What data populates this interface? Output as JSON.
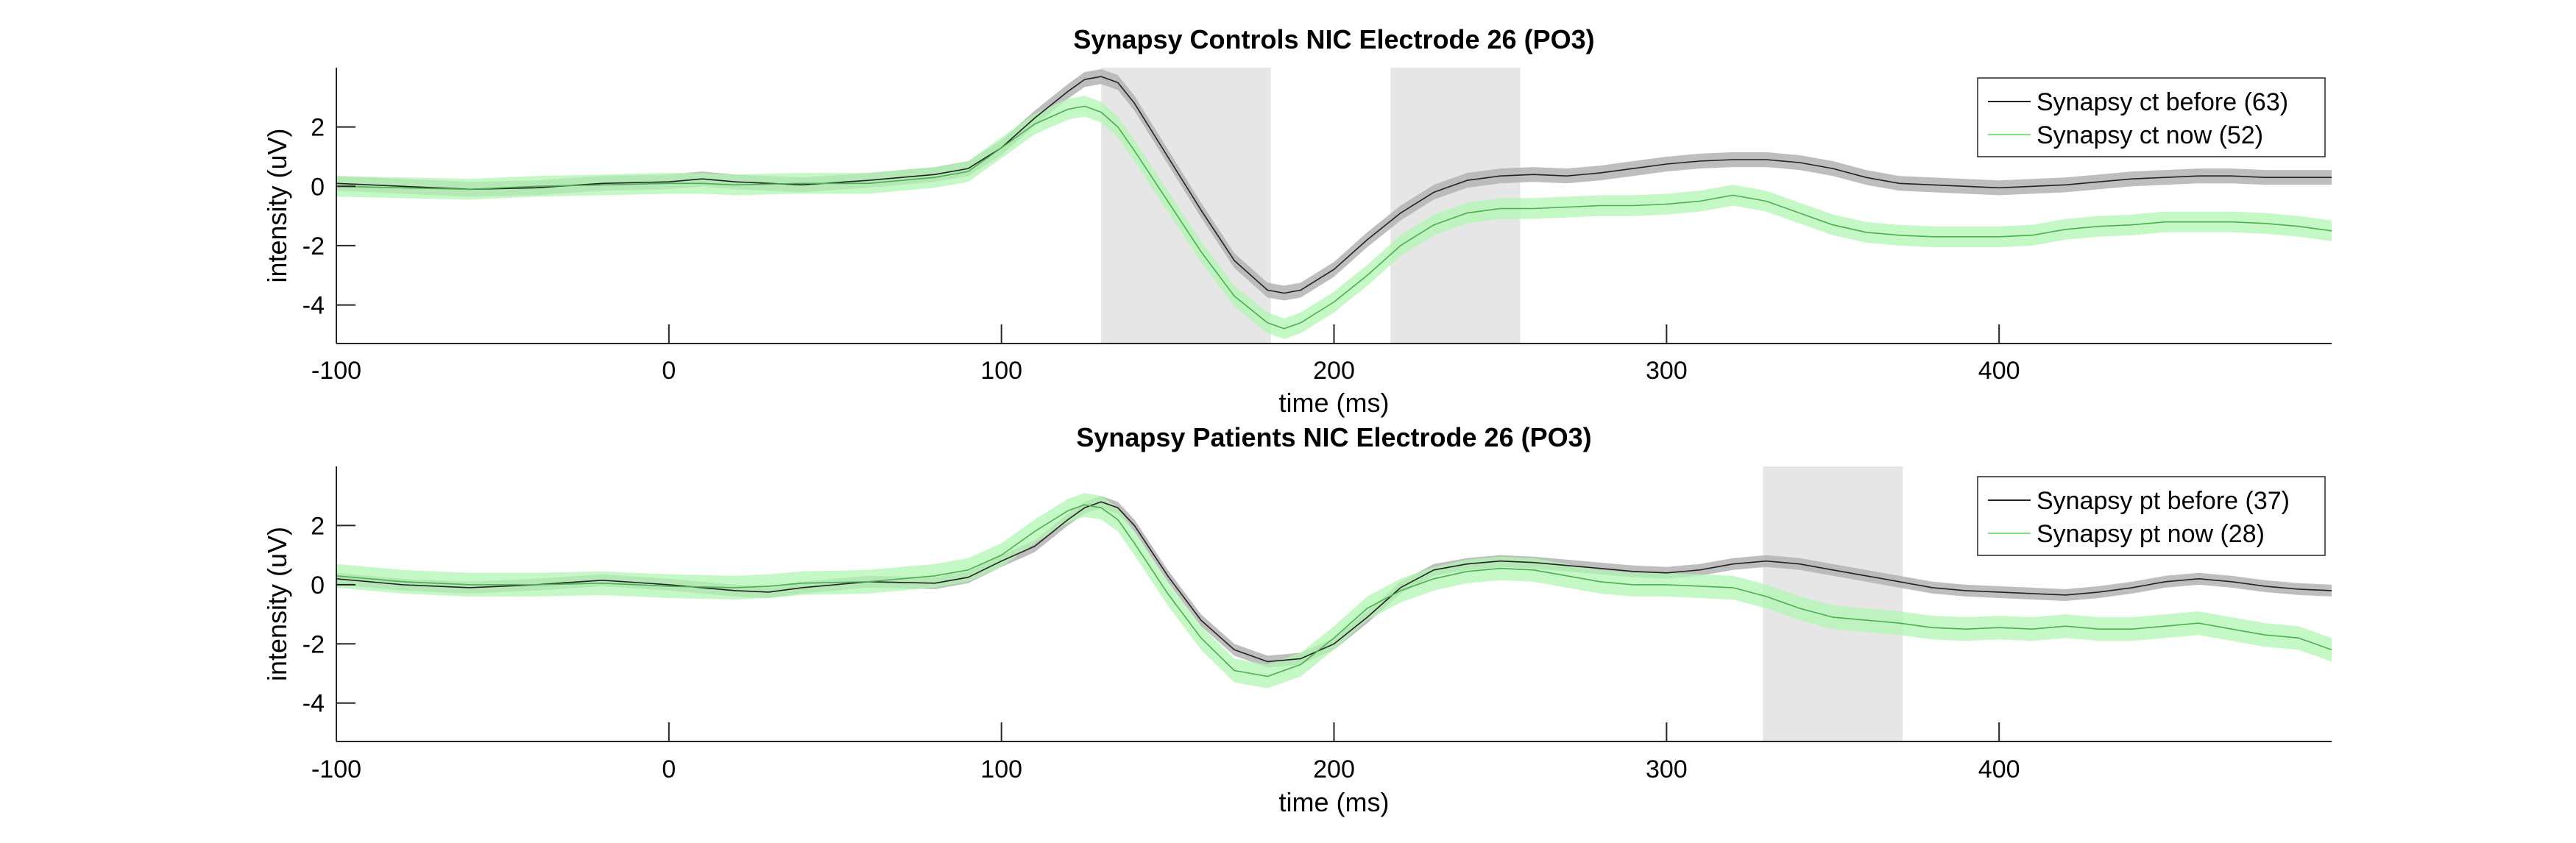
{
  "chart_data": [
    {
      "type": "line",
      "title": "Synapsy Controls NIC Electrode 26 (PO3)",
      "xlabel": "time (ms)",
      "ylabel": "intensity (uV)",
      "xlim": [
        -100,
        500
      ],
      "ylim": [
        -5.3,
        4
      ],
      "xticks": [
        -100,
        0,
        100,
        200,
        300,
        400
      ],
      "yticks": [
        -4,
        -2,
        0,
        2
      ],
      "shaded_regions": [
        [
          130,
          181
        ],
        [
          217,
          256
        ]
      ],
      "legend_position": "top-right",
      "grid": false,
      "x": [
        -100,
        -80,
        -60,
        -40,
        -20,
        0,
        10,
        20,
        40,
        60,
        80,
        90,
        100,
        110,
        120,
        125,
        130,
        135,
        140,
        150,
        160,
        170,
        180,
        185,
        190,
        200,
        210,
        220,
        230,
        240,
        250,
        260,
        270,
        280,
        290,
        300,
        310,
        320,
        330,
        340,
        350,
        360,
        370,
        380,
        390,
        400,
        410,
        420,
        430,
        440,
        450,
        460,
        470,
        480,
        490,
        500
      ],
      "series": [
        {
          "name": "Synapsy ct before (63)",
          "color": "#555555",
          "band_color": "#b3b3b3",
          "values": [
            0.1,
            0,
            -0.1,
            -0.05,
            0.1,
            0.15,
            0.25,
            0.15,
            0.05,
            0.2,
            0.4,
            0.6,
            1.3,
            2.3,
            3.2,
            3.6,
            3.7,
            3.5,
            2.8,
            1.0,
            -0.8,
            -2.5,
            -3.5,
            -3.6,
            -3.5,
            -2.8,
            -1.8,
            -0.9,
            -0.2,
            0.2,
            0.35,
            0.4,
            0.35,
            0.45,
            0.6,
            0.75,
            0.85,
            0.9,
            0.9,
            0.8,
            0.6,
            0.3,
            0.1,
            0.05,
            0,
            -0.05,
            0,
            0.05,
            0.15,
            0.25,
            0.3,
            0.35,
            0.35,
            0.3,
            0.3,
            0.3
          ],
          "band": 0.25
        },
        {
          "name": "Synapsy ct now (52)",
          "color": "#90ee90",
          "band_color": "#b0f5b0",
          "values": [
            0,
            -0.05,
            -0.1,
            0,
            0.05,
            0.1,
            0.1,
            0.05,
            0.1,
            0.1,
            0.3,
            0.5,
            1.3,
            2.1,
            2.6,
            2.7,
            2.5,
            2.0,
            1.2,
            -0.5,
            -2.2,
            -3.7,
            -4.6,
            -4.8,
            -4.6,
            -3.9,
            -3.0,
            -2.0,
            -1.3,
            -0.9,
            -0.75,
            -0.75,
            -0.7,
            -0.65,
            -0.65,
            -0.6,
            -0.5,
            -0.3,
            -0.5,
            -0.9,
            -1.3,
            -1.55,
            -1.65,
            -1.7,
            -1.7,
            -1.7,
            -1.65,
            -1.45,
            -1.35,
            -1.3,
            -1.2,
            -1.2,
            -1.2,
            -1.25,
            -1.35,
            -1.5
          ],
          "band": 0.35
        }
      ]
    },
    {
      "type": "line",
      "title": "Synapsy Patients NIC Electrode 26 (PO3)",
      "xlabel": "time (ms)",
      "ylabel": "intensity (uV)",
      "xlim": [
        -100,
        500
      ],
      "ylim": [
        -5.3,
        4
      ],
      "xticks": [
        -100,
        0,
        100,
        200,
        300,
        400
      ],
      "yticks": [
        -4,
        -2,
        0,
        2
      ],
      "shaded_regions": [
        [
          329,
          371
        ]
      ],
      "legend_position": "top-right",
      "grid": false,
      "x": [
        -100,
        -80,
        -60,
        -40,
        -20,
        0,
        20,
        30,
        40,
        60,
        80,
        90,
        100,
        110,
        120,
        125,
        130,
        135,
        140,
        150,
        160,
        170,
        180,
        190,
        200,
        210,
        220,
        230,
        240,
        250,
        260,
        270,
        280,
        290,
        300,
        310,
        320,
        330,
        340,
        350,
        360,
        370,
        380,
        390,
        400,
        410,
        420,
        430,
        440,
        450,
        460,
        470,
        480,
        490,
        500
      ],
      "series": [
        {
          "name": "Synapsy pt before (37)",
          "color": "#555555",
          "band_color": "#b3b3b3",
          "values": [
            0.2,
            0,
            -0.1,
            0,
            0.15,
            0,
            -0.2,
            -0.25,
            -0.1,
            0.1,
            0.05,
            0.25,
            0.8,
            1.3,
            2.2,
            2.6,
            2.8,
            2.6,
            2.0,
            0.3,
            -1.2,
            -2.2,
            -2.6,
            -2.5,
            -2.0,
            -1.1,
            -0.1,
            0.5,
            0.7,
            0.8,
            0.75,
            0.65,
            0.55,
            0.45,
            0.4,
            0.5,
            0.7,
            0.8,
            0.7,
            0.5,
            0.3,
            0.1,
            -0.1,
            -0.2,
            -0.25,
            -0.3,
            -0.35,
            -0.25,
            -0.1,
            0.1,
            0.2,
            0.1,
            -0.05,
            -0.15,
            -0.2
          ],
          "band": 0.2
        },
        {
          "name": "Synapsy pt now (28)",
          "color": "#90ee90",
          "band_color": "#b0f5b0",
          "values": [
            0.3,
            0.1,
            0,
            0,
            0.05,
            -0.05,
            -0.1,
            -0.05,
            0.05,
            0.1,
            0.3,
            0.5,
            1.0,
            1.8,
            2.5,
            2.7,
            2.6,
            2.2,
            1.4,
            -0.3,
            -1.8,
            -2.9,
            -3.1,
            -2.7,
            -1.8,
            -0.8,
            -0.2,
            0.2,
            0.45,
            0.55,
            0.5,
            0.3,
            0.1,
            0,
            0,
            -0.05,
            -0.1,
            -0.4,
            -0.8,
            -1.1,
            -1.2,
            -1.3,
            -1.45,
            -1.5,
            -1.45,
            -1.5,
            -1.4,
            -1.5,
            -1.5,
            -1.4,
            -1.3,
            -1.5,
            -1.7,
            -1.8,
            -2.2
          ],
          "band": 0.4
        }
      ]
    }
  ]
}
